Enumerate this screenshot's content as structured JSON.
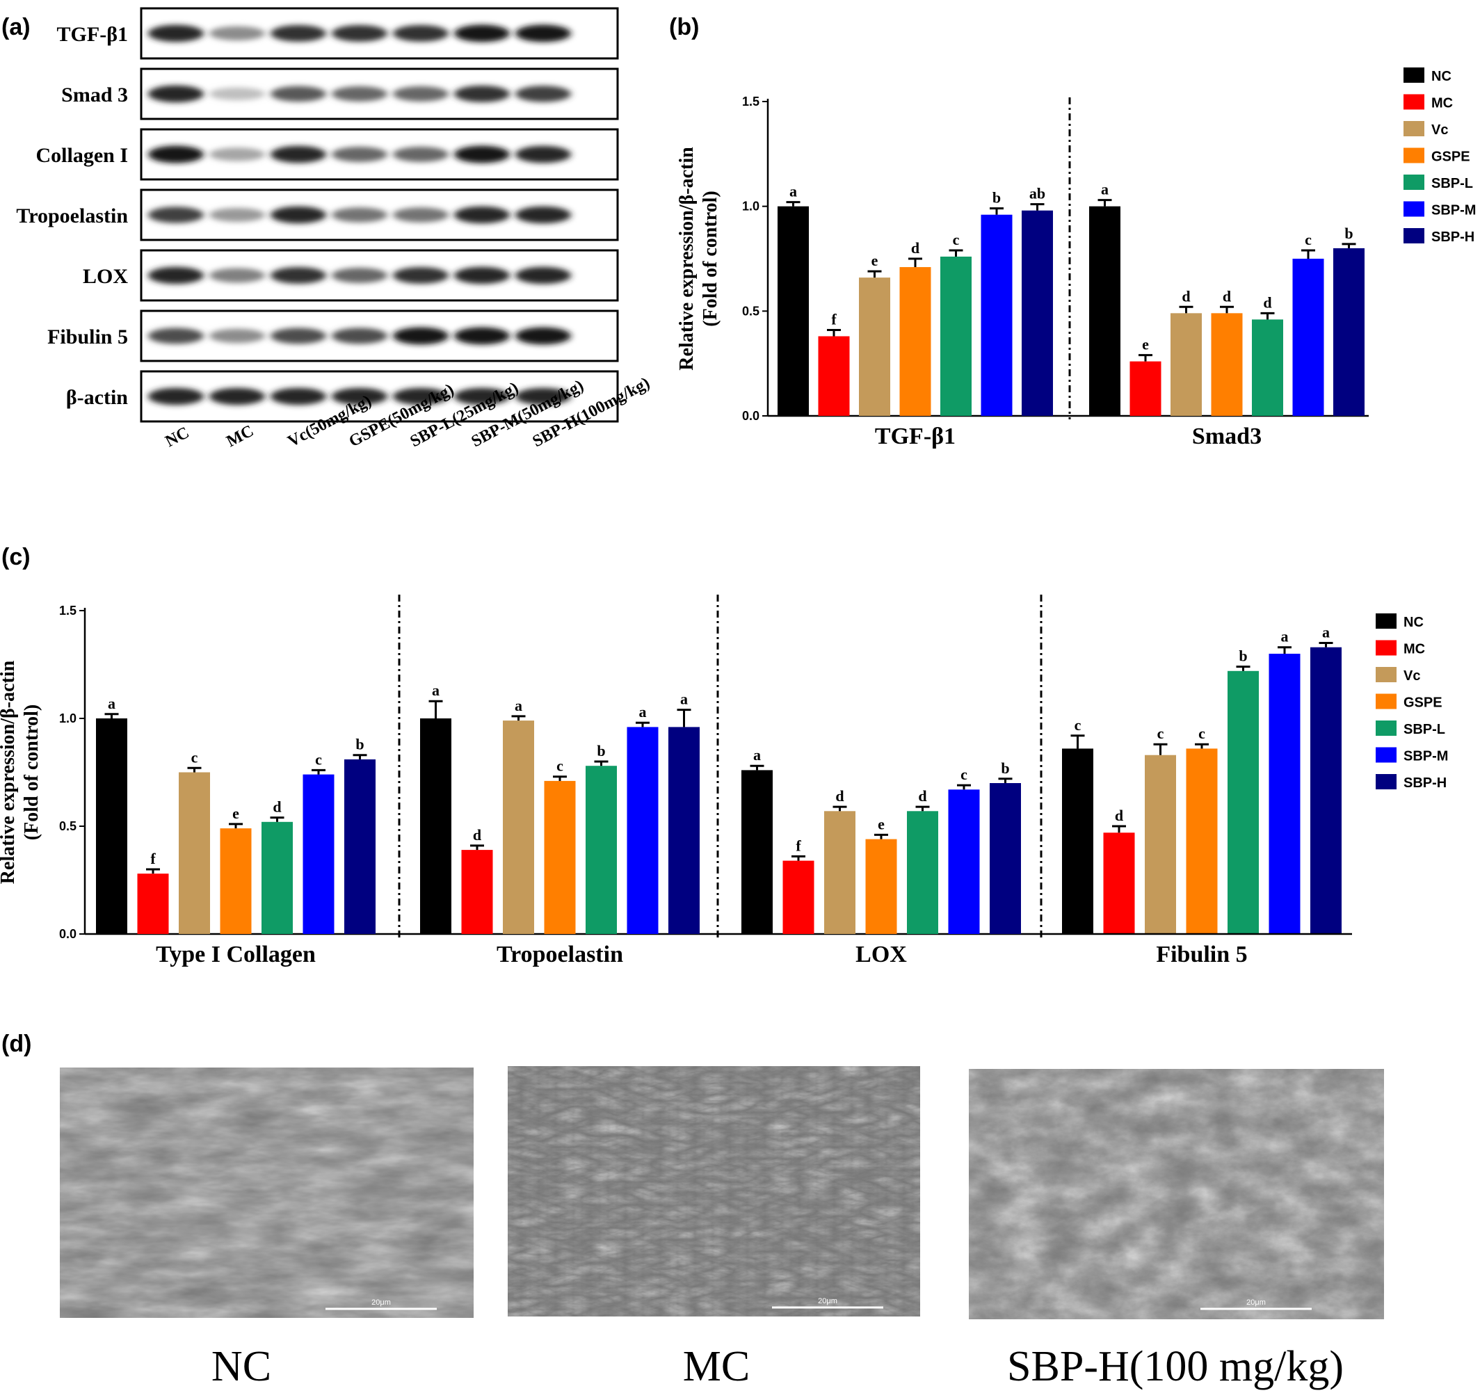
{
  "panel_labels": {
    "a": "(a)",
    "b": "(b)",
    "c": "(c)",
    "d": "(d)"
  },
  "colors": {
    "NC": "#000000",
    "MC": "#ff0000",
    "Vc": "#c49a5a",
    "GSPE": "#ff7f00",
    "SBP-L": "#0f9b65",
    "SBP-M": "#0000ff",
    "SBP-H": "#000080"
  },
  "western_blot": {
    "proteins": [
      "TGF-β1",
      "Smad 3",
      "Collagen I",
      "Tropoelastin",
      "LOX",
      "Fibulin 5",
      "β-actin"
    ],
    "lanes": [
      "NC",
      "MC",
      "Vc(50mg/kg)",
      "GSPE(50mg/kg)",
      "SBP-L(25mg/kg)",
      "SBP-M(50mg/kg)",
      "SBP-H(100mg/kg)"
    ],
    "band_intensity": [
      [
        0.85,
        0.45,
        0.8,
        0.8,
        0.8,
        0.9,
        0.9
      ],
      [
        0.85,
        0.25,
        0.65,
        0.6,
        0.6,
        0.8,
        0.75
      ],
      [
        0.9,
        0.35,
        0.85,
        0.6,
        0.6,
        0.9,
        0.85
      ],
      [
        0.75,
        0.4,
        0.85,
        0.55,
        0.55,
        0.85,
        0.85
      ],
      [
        0.85,
        0.5,
        0.8,
        0.6,
        0.8,
        0.85,
        0.85
      ],
      [
        0.7,
        0.45,
        0.7,
        0.7,
        0.9,
        0.9,
        0.9
      ],
      [
        0.85,
        0.85,
        0.85,
        0.85,
        0.85,
        0.85,
        0.85
      ]
    ]
  },
  "chart_data": [
    {
      "type": "bar",
      "panel": "b",
      "ylabel_line1": "Relative expression/β-actin",
      "ylabel_line2": "(Fold of control)",
      "ylim": [
        0,
        1.5
      ],
      "yticks": [
        "0.0",
        "0.5",
        "1.0",
        "1.5"
      ],
      "legend": [
        "NC",
        "MC",
        "Vc",
        "GSPE",
        "SBP-L",
        "SBP-M",
        "SBP-H"
      ],
      "legend_position": "right",
      "groups": [
        {
          "name": "TGF-β1",
          "values": [
            1.0,
            0.38,
            0.66,
            0.71,
            0.76,
            0.96,
            0.98
          ],
          "errors": [
            0.02,
            0.03,
            0.03,
            0.04,
            0.03,
            0.03,
            0.03
          ],
          "letters": [
            "a",
            "f",
            "e",
            "d",
            "c",
            "b",
            "ab"
          ]
        },
        {
          "name": "Smad3",
          "values": [
            1.0,
            0.26,
            0.49,
            0.49,
            0.46,
            0.75,
            0.8
          ],
          "errors": [
            0.03,
            0.03,
            0.03,
            0.03,
            0.03,
            0.04,
            0.02
          ],
          "letters": [
            "a",
            "e",
            "d",
            "d",
            "d",
            "c",
            "b"
          ]
        }
      ]
    },
    {
      "type": "bar",
      "panel": "c",
      "ylabel_line1": "Relative expression/β-actin",
      "ylabel_line2": "(Fold of control)",
      "ylim": [
        0,
        1.5
      ],
      "yticks": [
        "0.0",
        "0.5",
        "1.0",
        "1.5"
      ],
      "legend": [
        "NC",
        "MC",
        "Vc",
        "GSPE",
        "SBP-L",
        "SBP-M",
        "SBP-H"
      ],
      "legend_position": "right",
      "groups": [
        {
          "name": "Type I Collagen",
          "values": [
            1.0,
            0.28,
            0.75,
            0.49,
            0.52,
            0.74,
            0.81
          ],
          "errors": [
            0.02,
            0.02,
            0.02,
            0.02,
            0.02,
            0.02,
            0.02
          ],
          "letters": [
            "a",
            "f",
            "c",
            "e",
            "d",
            "c",
            "b"
          ]
        },
        {
          "name": "Tropoelastin",
          "values": [
            1.0,
            0.39,
            0.99,
            0.71,
            0.78,
            0.96,
            0.96
          ],
          "errors": [
            0.08,
            0.02,
            0.02,
            0.02,
            0.02,
            0.02,
            0.08
          ],
          "letters": [
            "a",
            "d",
            "a",
            "c",
            "b",
            "a",
            "a"
          ]
        },
        {
          "name": "LOX",
          "values": [
            0.76,
            0.34,
            0.57,
            0.44,
            0.57,
            0.67,
            0.7
          ],
          "errors": [
            0.02,
            0.02,
            0.02,
            0.02,
            0.02,
            0.02,
            0.02
          ],
          "letters": [
            "a",
            "f",
            "d",
            "e",
            "d",
            "c",
            "b"
          ]
        },
        {
          "name": "Fibulin 5",
          "values": [
            0.86,
            0.47,
            0.83,
            0.86,
            1.22,
            1.3,
            1.33
          ],
          "errors": [
            0.06,
            0.03,
            0.05,
            0.02,
            0.02,
            0.03,
            0.02
          ],
          "letters": [
            "c",
            "d",
            "c",
            "c",
            "b",
            "a",
            "a"
          ]
        }
      ]
    }
  ],
  "sem_images": [
    {
      "caption": "NC",
      "scale_bar": "20μm"
    },
    {
      "caption": "MC",
      "scale_bar": "20μm"
    },
    {
      "caption": "SBP-H(100 mg/kg)",
      "scale_bar": "20μm"
    }
  ]
}
